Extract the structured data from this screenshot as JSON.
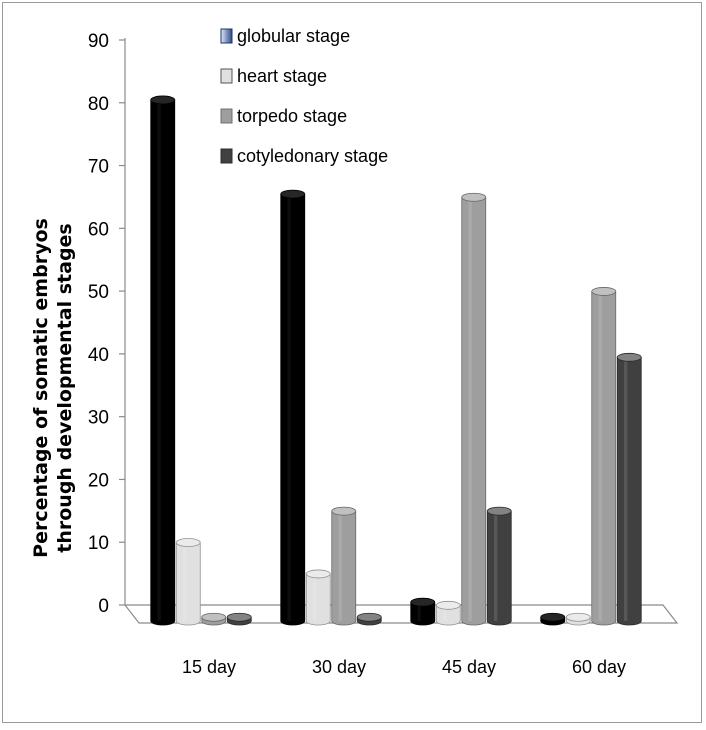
{
  "chart_data": {
    "type": "bar",
    "categories": [
      "15 day",
      "30 day",
      "45 day",
      "60 day"
    ],
    "series": [
      {
        "name": "globular stage",
        "values": [
          83,
          68,
          3,
          0
        ],
        "color": "#000000"
      },
      {
        "name": "heart stage",
        "values": [
          12.5,
          7.5,
          2.5,
          0
        ],
        "color": "#e0e0e0"
      },
      {
        "name": "torpedo stage",
        "values": [
          0,
          17.5,
          67.5,
          52.5
        ],
        "color": "#9e9e9e"
      },
      {
        "name": "cotyledonary stage",
        "values": [
          0,
          0,
          17.5,
          42
        ],
        "color": "#404040"
      }
    ],
    "ylabel_lines": [
      "Percentage of somatic embryos",
      "through developmental stages"
    ],
    "ylim": [
      0,
      90
    ],
    "yticks": [
      0,
      10,
      20,
      30,
      40,
      50,
      60,
      70,
      80,
      90
    ],
    "legend_position": "top-right",
    "grid": false
  }
}
